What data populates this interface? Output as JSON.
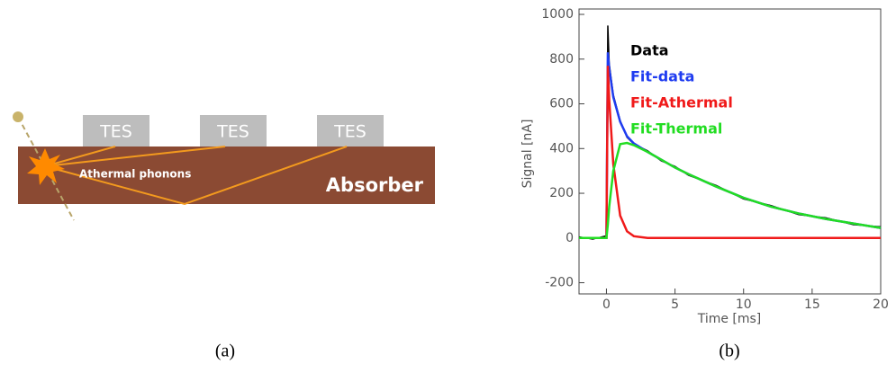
{
  "diagram": {
    "tes_labels": [
      "TES",
      "TES",
      "TES"
    ],
    "phonon_label": "Athermal phonons",
    "absorber_label": "Absorber"
  },
  "captions": [
    "(a)",
    "(b)"
  ],
  "chart_data": {
    "type": "line",
    "x_label": "Time [ms]",
    "y_label": "Signal [nA]",
    "x": [
      -2,
      -1,
      0,
      0.1,
      0.2,
      0.5,
      1,
      1.5,
      2,
      3,
      4,
      5,
      6,
      8,
      10,
      12,
      14,
      16,
      18,
      20
    ],
    "series": [
      {
        "name": "Data",
        "color": "#000000",
        "values": [
          5,
          -5,
          10,
          950,
          780,
          640,
          525,
          450,
          420,
          390,
          345,
          320,
          280,
          235,
          175,
          145,
          105,
          90,
          60,
          50
        ]
      },
      {
        "name": "Fit-data",
        "color": "#1f3cf0",
        "values": [
          0,
          0,
          0,
          830,
          760,
          630,
          520,
          455,
          423,
          385,
          350,
          315,
          285,
          230,
          180,
          140,
          110,
          85,
          65,
          45
        ]
      },
      {
        "name": "Fit-Athermal",
        "color": "#f01a1a",
        "values": [
          0,
          0,
          0,
          770,
          620,
          330,
          100,
          30,
          8,
          0,
          0,
          0,
          0,
          0,
          0,
          0,
          0,
          0,
          0,
          0
        ]
      },
      {
        "name": "Fit-Thermal",
        "color": "#22dd22",
        "values": [
          0,
          0,
          0,
          60,
          140,
          300,
          420,
          425,
          415,
          385,
          350,
          315,
          285,
          230,
          180,
          140,
          110,
          85,
          65,
          45
        ]
      }
    ],
    "xlim": [
      -2,
      20
    ],
    "ylim": [
      -250,
      1000
    ],
    "xticks": [
      0,
      5,
      10,
      15,
      20
    ],
    "yticks": [
      -200,
      0,
      200,
      400,
      600,
      800,
      1000
    ]
  }
}
